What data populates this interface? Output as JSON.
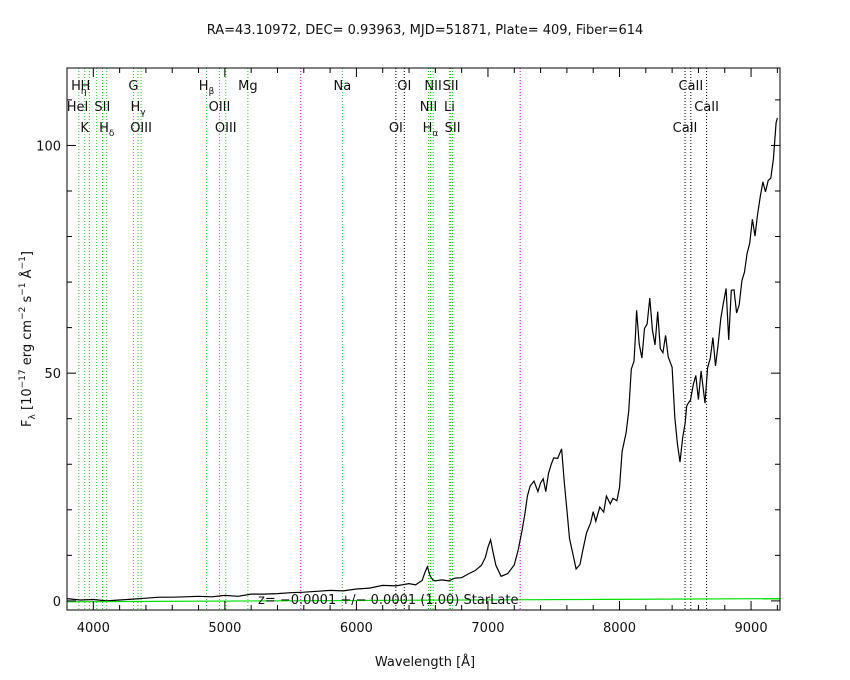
{
  "chart_data": {
    "type": "line",
    "title": "RA=43.10972, DEC= 0.93963, MJD=51871, Plate= 409, Fiber=614",
    "xlabel": "Wavelength [Å]",
    "ylabel_parts": {
      "f": "F",
      "lambda": "λ",
      "open": " [10",
      "e17": "−17",
      "erg": " erg cm",
      "e2": "−2",
      "s": " s",
      "e1a": "−1",
      "ang": " Å",
      "e1b": "−1",
      "close": "]"
    },
    "xlim": [
      3800,
      9220
    ],
    "ylim": [
      -2,
      117
    ],
    "xticks": [
      4000,
      5000,
      6000,
      7000,
      8000,
      9000
    ],
    "xtick_labels": [
      "4000",
      "5000",
      "6000",
      "7000",
      "8000",
      "9000"
    ],
    "yticks": [
      0,
      50,
      100
    ],
    "ytick_labels": [
      "0",
      "50",
      "100"
    ],
    "annotation": "z= −0.0001 +/− 0.0001 (1.00)  StarLate",
    "series": [
      {
        "name": "spectrum",
        "color": "#000000",
        "x": [
          3800,
          3900,
          4000,
          4100,
          4200,
          4300,
          4400,
          4500,
          4600,
          4700,
          4800,
          4900,
          5000,
          5100,
          5200,
          5300,
          5400,
          5500,
          5600,
          5700,
          5800,
          5900,
          6000,
          6100,
          6200,
          6300,
          6400,
          6450,
          6500,
          6520,
          6540,
          6560,
          6580,
          6600,
          6650,
          6700,
          6750,
          6800,
          6850,
          6900,
          6950,
          6980,
          7000,
          7020,
          7040,
          7060,
          7100,
          7150,
          7200,
          7230,
          7260,
          7280,
          7300,
          7320,
          7350,
          7380,
          7400,
          7420,
          7440,
          7460,
          7480,
          7500,
          7530,
          7560,
          7580,
          7600,
          7620,
          7650,
          7670,
          7700,
          7720,
          7750,
          7780,
          7800,
          7820,
          7850,
          7880,
          7900,
          7930,
          7950,
          7980,
          8000,
          8020,
          8050,
          8070,
          8090,
          8110,
          8120,
          8130,
          8150,
          8170,
          8190,
          8210,
          8230,
          8250,
          8270,
          8290,
          8310,
          8330,
          8350,
          8370,
          8400,
          8420,
          8440,
          8460,
          8480,
          8500,
          8510,
          8520,
          8540,
          8560,
          8580,
          8600,
          8620,
          8650,
          8670,
          8690,
          8710,
          8730,
          8750,
          8770,
          8790,
          8810,
          8830,
          8850,
          8870,
          8890,
          8910,
          8930,
          8950,
          8970,
          8990,
          9010,
          9030,
          9050,
          9070,
          9090,
          9110,
          9130,
          9150,
          9170,
          9190,
          9200
        ],
        "y": [
          0.5,
          0.2,
          0.3,
          0,
          0.2,
          0.4,
          0.6,
          0.8,
          0.8,
          0.9,
          1.0,
          0.9,
          1.2,
          1.0,
          1.5,
          1.5,
          1.6,
          1.8,
          1.9,
          2.1,
          2.3,
          2.2,
          2.6,
          2.8,
          3.4,
          3.3,
          3.8,
          3.5,
          4.5,
          6.2,
          7.5,
          5.5,
          4.6,
          4.4,
          4.6,
          4.4,
          5.0,
          5.1,
          5.9,
          6.6,
          7.8,
          9.5,
          11.8,
          13.4,
          10.5,
          7.8,
          5.4,
          6.0,
          7.9,
          11.2,
          15.6,
          19.0,
          23.0,
          25.2,
          26.3,
          24.0,
          25.9,
          26.8,
          24.0,
          28.0,
          29.9,
          31.4,
          31.3,
          33.4,
          26.0,
          20.0,
          13.7,
          9.7,
          7.0,
          8.0,
          11.0,
          15.0,
          17.1,
          19.6,
          17.5,
          20.6,
          19.5,
          23.0,
          21.3,
          22.5,
          22.0,
          24.9,
          32.8,
          36.9,
          41.6,
          50.9,
          52.6,
          57.6,
          63.8,
          56.4,
          53.3,
          59.8,
          60.8,
          66.5,
          59.5,
          56.2,
          63.5,
          55.4,
          54.5,
          58.3,
          53.6,
          51.3,
          40.3,
          34.5,
          30.5,
          35.9,
          39.2,
          42.7,
          43.3,
          44.1,
          47.4,
          49.5,
          44.2,
          50.5,
          43.4,
          51.2,
          53.3,
          57.8,
          51.6,
          56.4,
          62.0,
          65.4,
          68.6,
          57.3,
          68.2,
          68.3,
          63.2,
          65.0,
          70.3,
          72.2,
          76.3,
          78.5,
          83.8,
          80.1,
          84.9,
          88.8,
          92.0,
          89.8,
          92.3,
          92.8,
          97.0,
          105.0,
          106.0
        ]
      },
      {
        "name": "error",
        "color": "#00e000",
        "x": [
          3800,
          9220
        ],
        "y": [
          -0.2,
          0.5
        ]
      }
    ],
    "line_markers": [
      {
        "x": 3890,
        "color": "#22cc22"
      },
      {
        "x": 3935,
        "color": "#22cc22"
      },
      {
        "x": 3970,
        "color": "#22cc22"
      },
      {
        "x": 4026,
        "color": "#22cc22"
      },
      {
        "x": 4070,
        "color": "#22cc22"
      },
      {
        "x": 4102,
        "color": "#22cc22"
      },
      {
        "x": 4305,
        "color": "#22cc22"
      },
      {
        "x": 4340,
        "color": "#22cc22"
      },
      {
        "x": 4363,
        "color": "#22cc22"
      },
      {
        "x": 4861,
        "color": "#22cc22"
      },
      {
        "x": 4959,
        "color": "#22cc22"
      },
      {
        "x": 5007,
        "color": "#22cc22"
      },
      {
        "x": 5175,
        "color": "#22cc22"
      },
      {
        "x": 5577,
        "color": "#dd00dd"
      },
      {
        "x": 5893,
        "color": "#22cc22"
      },
      {
        "x": 6300,
        "color": "#000000"
      },
      {
        "x": 6364,
        "color": "#000000"
      },
      {
        "x": 6548,
        "color": "#22cc22"
      },
      {
        "x": 6563,
        "color": "#22cc22"
      },
      {
        "x": 6583,
        "color": "#22cc22"
      },
      {
        "x": 6707,
        "color": "#22cc22"
      },
      {
        "x": 6716,
        "color": "#22cc22"
      },
      {
        "x": 6731,
        "color": "#22cc22"
      },
      {
        "x": 7245,
        "color": "#dd00dd"
      },
      {
        "x": 8498,
        "color": "#000000"
      },
      {
        "x": 8542,
        "color": "#000000"
      },
      {
        "x": 8662,
        "color": "#000000"
      }
    ],
    "line_labels": [
      {
        "x": 3890,
        "row": 0,
        "text": "H",
        "sub": "η"
      },
      {
        "x": 3940,
        "row": 0,
        "text": "H",
        "sub": ""
      },
      {
        "x": 4305,
        "row": 0,
        "text": "G",
        "sub": ""
      },
      {
        "x": 4861,
        "row": 0,
        "text": "H",
        "sub": "β"
      },
      {
        "x": 5175,
        "row": 0,
        "text": "Mg",
        "sub": ""
      },
      {
        "x": 5893,
        "row": 0,
        "text": "Na",
        "sub": ""
      },
      {
        "x": 6364,
        "row": 0,
        "text": "OI",
        "sub": ""
      },
      {
        "x": 6583,
        "row": 0,
        "text": "NII",
        "sub": ""
      },
      {
        "x": 6716,
        "row": 0,
        "text": "SII",
        "sub": ""
      },
      {
        "x": 8542,
        "row": 0,
        "text": "CaII",
        "sub": ""
      },
      {
        "x": 3880,
        "row": 1,
        "text": "HeI",
        "sub": ""
      },
      {
        "x": 4069,
        "row": 1,
        "text": "SII",
        "sub": ""
      },
      {
        "x": 4340,
        "row": 1,
        "text": "H",
        "sub": "γ"
      },
      {
        "x": 4959,
        "row": 1,
        "text": "OIII",
        "sub": ""
      },
      {
        "x": 6548,
        "row": 1,
        "text": "NII",
        "sub": ""
      },
      {
        "x": 6707,
        "row": 1,
        "text": "Li",
        "sub": ""
      },
      {
        "x": 8662,
        "row": 1,
        "text": "CaII",
        "sub": ""
      },
      {
        "x": 3934,
        "row": 2,
        "text": "K",
        "sub": ""
      },
      {
        "x": 4102,
        "row": 2,
        "text": "H",
        "sub": "δ"
      },
      {
        "x": 4363,
        "row": 2,
        "text": "OIII",
        "sub": ""
      },
      {
        "x": 5007,
        "row": 2,
        "text": "OIII",
        "sub": ""
      },
      {
        "x": 6300,
        "row": 2,
        "text": "OI",
        "sub": ""
      },
      {
        "x": 6563,
        "row": 2,
        "text": "H",
        "sub": "α"
      },
      {
        "x": 6731,
        "row": 2,
        "text": "SII",
        "sub": ""
      },
      {
        "x": 8498,
        "row": 2,
        "text": "CaII",
        "sub": ""
      }
    ]
  }
}
